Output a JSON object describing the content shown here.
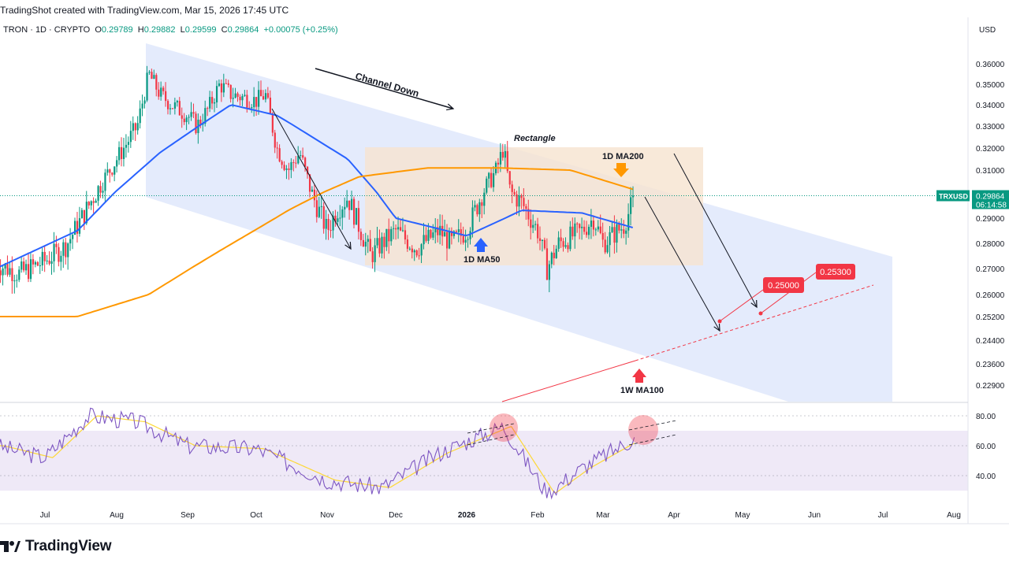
{
  "header": {
    "text": "TradingShot created with TradingView.com, Mar 15, 2026 17:45 UTC"
  },
  "legend": {
    "symbol": "TRON · 1D · CRYPTO",
    "o_label": "O",
    "o_value": "0.29789",
    "h_label": "H",
    "h_value": "0.29882",
    "l_label": "L",
    "l_value": "0.29599",
    "c_label": "C",
    "c_value": "0.29864",
    "change": "+0.00075 (+0.25%)"
  },
  "currency": "USD",
  "ticker_tag": "TRXUSD",
  "last_price_label": "0.29864",
  "countdown": "06:14:58",
  "footer": {
    "brand": "TradingView"
  },
  "colors": {
    "up": "#089981",
    "down": "#f23645",
    "ma50": "#2962ff",
    "ma200": "#ff9800",
    "channel": "#dbe4fb",
    "rectangle": "#f6e4cf",
    "target": "#f23645",
    "rsi": "#7e57c2",
    "rsi_ma": "#fdd835"
  },
  "chart_data": {
    "type": "candlestick",
    "symbol": "TRXUSD",
    "timeframe": "1D",
    "y_axis_ticks": [
      0.36,
      0.35,
      0.34,
      0.33,
      0.32,
      0.31,
      0.29,
      0.28,
      0.27,
      0.26,
      0.252,
      0.244,
      0.236,
      0.229
    ],
    "x_axis_ticks": [
      "Jul",
      "Aug",
      "Sep",
      "Oct",
      "Nov",
      "Dec",
      "2026",
      "Feb",
      "Mar",
      "Apr",
      "May",
      "Jun",
      "Jul",
      "Aug"
    ],
    "price_path": [
      [
        "Jun 10",
        0.272
      ],
      [
        "Jun 20",
        0.268
      ],
      [
        "Jul 1",
        0.273
      ],
      [
        "Jul 10",
        0.279
      ],
      [
        "Jul 20",
        0.295
      ],
      [
        "Aug 1",
        0.315
      ],
      [
        "Aug 10",
        0.33
      ],
      [
        "Aug 15",
        0.355
      ],
      [
        "Aug 20",
        0.345
      ],
      [
        "Aug 25",
        0.34
      ],
      [
        "Sep 1",
        0.335
      ],
      [
        "Sep 5",
        0.33
      ],
      [
        "Sep 10",
        0.338
      ],
      [
        "Sep 15",
        0.35
      ],
      [
        "Sep 20",
        0.345
      ],
      [
        "Oct 1",
        0.342
      ],
      [
        "Oct 5",
        0.345
      ],
      [
        "Oct 10",
        0.32
      ],
      [
        "Oct 15",
        0.31
      ],
      [
        "Oct 20",
        0.318
      ],
      [
        "Oct 25",
        0.3
      ],
      [
        "Nov 1",
        0.285
      ],
      [
        "Nov 5",
        0.293
      ],
      [
        "Nov 10",
        0.298
      ],
      [
        "Nov 20",
        0.275
      ],
      [
        "Nov 25",
        0.28
      ],
      [
        "Dec 1",
        0.285
      ],
      [
        "Dec 10",
        0.278
      ],
      [
        "Dec 20",
        0.285
      ],
      [
        "Dec 25",
        0.28
      ],
      [
        "Jan 1",
        0.285
      ],
      [
        "Jan 8",
        0.3
      ],
      [
        "Jan 14",
        0.31
      ],
      [
        "Jan 17",
        0.32
      ],
      [
        "Jan 20",
        0.3
      ],
      [
        "Jan 25",
        0.296
      ],
      [
        "Feb 1",
        0.285
      ],
      [
        "Feb 5",
        0.27
      ],
      [
        "Feb 10",
        0.28
      ],
      [
        "Feb 20",
        0.285
      ],
      [
        "Feb 25",
        0.29
      ],
      [
        "Mar 1",
        0.28
      ],
      [
        "Mar 10",
        0.287
      ],
      [
        "Mar 15",
        0.2986
      ]
    ],
    "indicators": [
      {
        "name": "1D MA50",
        "values": [
          [
            "Jun 10",
            0.27
          ],
          [
            "Jul 15",
            0.285
          ],
          [
            "Aug 20",
            0.318
          ],
          [
            "Sep 20",
            0.34
          ],
          [
            "Oct 10",
            0.335
          ],
          [
            "Nov 10",
            0.315
          ],
          [
            "Dec 1",
            0.29
          ],
          [
            "Jan 1",
            0.283
          ],
          [
            "Jan 25",
            0.293
          ],
          [
            "Feb 20",
            0.292
          ],
          [
            "Mar 15",
            0.286
          ]
        ]
      },
      {
        "name": "1D MA200",
        "values": [
          [
            "Jun 10",
            0.252
          ],
          [
            "Jul 15",
            0.252
          ],
          [
            "Aug 15",
            0.26
          ],
          [
            "Sep 15",
            0.277
          ],
          [
            "Oct 15",
            0.293
          ],
          [
            "Nov 15",
            0.307
          ],
          [
            "Dec 15",
            0.311
          ],
          [
            "Jan 15",
            0.311
          ],
          [
            "Feb 15",
            0.31
          ],
          [
            "Mar 15",
            0.301
          ]
        ]
      }
    ],
    "rsi": {
      "levels": [
        80,
        60,
        40
      ],
      "path": [
        [
          "Jun 10",
          60
        ],
        [
          "Jul 1",
          52
        ],
        [
          "Jul 20",
          80
        ],
        [
          "Aug 10",
          76
        ],
        [
          "Sep 1",
          60
        ],
        [
          "Oct 1",
          58
        ],
        [
          "Nov 1",
          37
        ],
        [
          "Nov 25",
          32
        ],
        [
          "Dec 20",
          55
        ],
        [
          "Jan 17",
          73
        ],
        [
          "Feb 5",
          28
        ],
        [
          "Feb 20",
          45
        ],
        [
          "Mar 15",
          65
        ]
      ]
    },
    "annotations": [
      "Channel Down",
      "Rectangle",
      "1D MA200",
      "1D MA50",
      "1W MA100"
    ],
    "targets": [
      0.25,
      0.253
    ]
  }
}
